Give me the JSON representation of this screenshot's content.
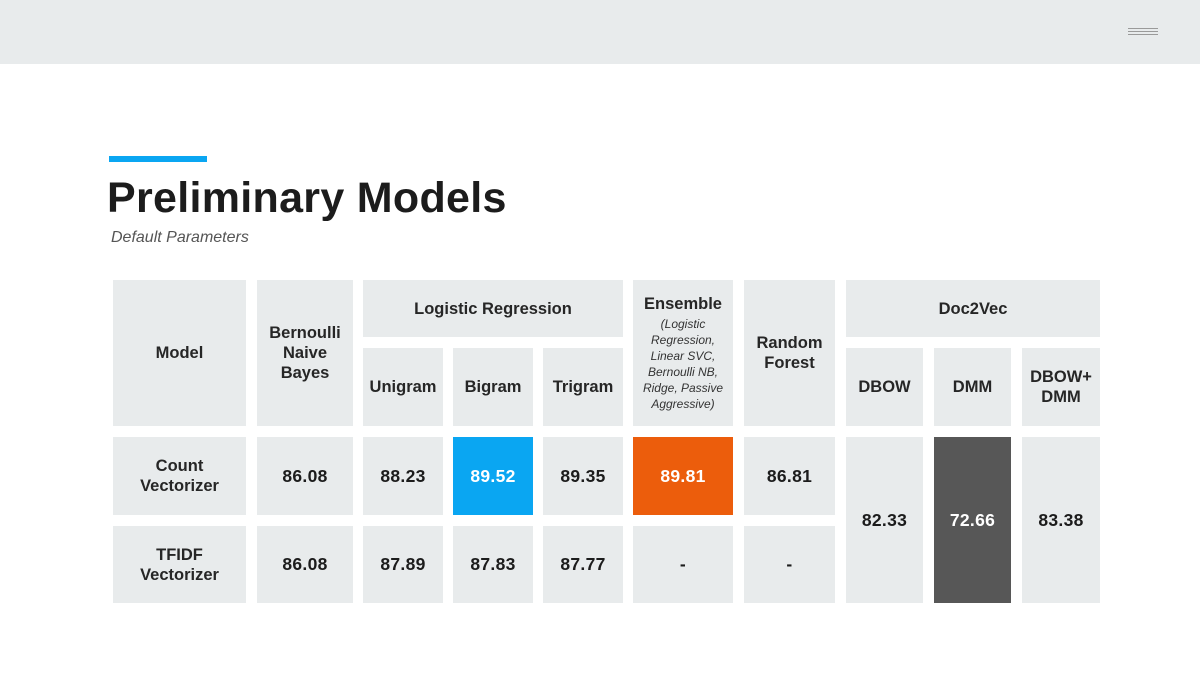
{
  "header": {
    "title": "Preliminary Models",
    "subtitle": "Default Parameters"
  },
  "table": {
    "model_label": "Model",
    "bernoulli_label": "Bernoulli Naive Bayes",
    "logreg_label": "Logistic Regression",
    "unigram_label": "Unigram",
    "bigram_label": "Bigram",
    "trigram_label": "Trigram",
    "ensemble_label": "Ensemble",
    "ensemble_note": "(Logistic Regression, Linear SVC, Bernoulli NB, Ridge, Passive Aggressive)",
    "rf_label": "Random Forest",
    "doc2vec_label": "Doc2Vec",
    "dbow_label": "DBOW",
    "dmm_label": "DMM",
    "dbowdmm_label": "DBOW+ DMM",
    "rows": [
      {
        "label": "Count Vectorizer",
        "bernoulli": "86.08",
        "unigram": "88.23",
        "bigram": "89.52",
        "trigram": "89.35",
        "ensemble": "89.81",
        "rf": "86.81"
      },
      {
        "label": "TFIDF Vectorizer",
        "bernoulli": "86.08",
        "unigram": "87.89",
        "bigram": "87.83",
        "trigram": "87.77",
        "ensemble": "-",
        "rf": "-"
      }
    ],
    "doc2vec": {
      "dbow": "82.33",
      "dmm": "72.66",
      "dbowdmm": "83.38"
    }
  },
  "colors": {
    "accent": "#0aa6f2",
    "best_highlight": "#0aa6f2",
    "ensemble_highlight": "#ec5d0c",
    "low_highlight": "#575757",
    "cell_bg": "#e8ebec"
  },
  "icons": {
    "menu": "hamburger-menu-icon"
  }
}
